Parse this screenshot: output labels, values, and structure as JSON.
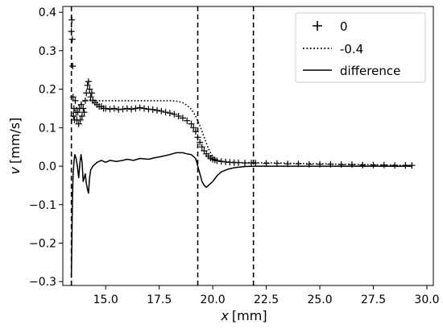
{
  "chart_data": {
    "type": "line",
    "xlabel": {
      "var": "x",
      "unit": "[mm]"
    },
    "ylabel": {
      "var": "v",
      "unit": "[mm/s]"
    },
    "xlim": [
      13.0,
      30.3
    ],
    "ylim": [
      -0.31,
      0.415
    ],
    "xticks": [
      15.0,
      17.5,
      20.0,
      22.5,
      25.0,
      27.5,
      30.0
    ],
    "xtick_labels": [
      "15.0",
      "17.5",
      "20.0",
      "22.5",
      "25.0",
      "27.5",
      "30.0"
    ],
    "yticks": [
      -0.3,
      -0.2,
      -0.1,
      0.0,
      0.1,
      0.2,
      0.3,
      0.4
    ],
    "ytick_labels": [
      "−0.3",
      "−0.2",
      "−0.1",
      "0.0",
      "0.1",
      "0.2",
      "0.3",
      "0.4"
    ],
    "grid": false,
    "legend_position": "top-right",
    "vlines": [
      13.4,
      19.3,
      21.9
    ],
    "series": [
      {
        "name": "0",
        "style": "markers-plus",
        "x": [
          13.4,
          13.42,
          13.44,
          13.46,
          13.48,
          13.5,
          13.52,
          13.55,
          13.58,
          13.62,
          13.66,
          13.7,
          13.74,
          13.78,
          13.82,
          13.86,
          13.9,
          13.95,
          14.0,
          14.05,
          14.1,
          14.15,
          14.2,
          14.25,
          14.3,
          14.35,
          14.4,
          14.5,
          14.6,
          14.7,
          14.8,
          14.9,
          15.0,
          15.2,
          15.4,
          15.6,
          15.8,
          16.0,
          16.2,
          16.4,
          16.6,
          16.8,
          17.0,
          17.2,
          17.4,
          17.6,
          17.8,
          18.0,
          18.2,
          18.4,
          18.6,
          18.8,
          19.0,
          19.1,
          19.2,
          19.3,
          19.4,
          19.5,
          19.6,
          19.7,
          19.8,
          19.9,
          20.0,
          20.1,
          20.2,
          20.4,
          20.6,
          20.8,
          21.0,
          21.2,
          21.5,
          21.8,
          22.0,
          22.5,
          23.0,
          23.5,
          24.0,
          24.5,
          25.0,
          25.5,
          26.0,
          26.5,
          27.0,
          27.5,
          28.0,
          28.5,
          29.0,
          29.3
        ],
        "y": [
          0.35,
          0.38,
          0.33,
          0.26,
          0.18,
          0.13,
          0.15,
          0.12,
          0.17,
          0.14,
          0.12,
          0.14,
          0.11,
          0.15,
          0.12,
          0.16,
          0.13,
          0.15,
          0.14,
          0.17,
          0.19,
          0.21,
          0.22,
          0.2,
          0.18,
          0.19,
          0.17,
          0.165,
          0.16,
          0.155,
          0.155,
          0.15,
          0.15,
          0.148,
          0.15,
          0.147,
          0.148,
          0.15,
          0.148,
          0.15,
          0.152,
          0.15,
          0.148,
          0.147,
          0.145,
          0.143,
          0.14,
          0.138,
          0.135,
          0.13,
          0.125,
          0.118,
          0.11,
          0.1,
          0.09,
          0.075,
          0.062,
          0.05,
          0.04,
          0.032,
          0.026,
          0.021,
          0.018,
          0.016,
          0.014,
          0.012,
          0.011,
          0.01,
          0.009,
          0.009,
          0.008,
          0.008,
          0.008,
          0.007,
          0.007,
          0.006,
          0.006,
          0.005,
          0.005,
          0.005,
          0.004,
          0.004,
          0.003,
          0.003,
          0.003,
          0.002,
          0.002,
          0.002
        ]
      },
      {
        "name": "-0.4",
        "style": "dotted",
        "x": [
          13.4,
          13.5,
          13.6,
          13.8,
          14.0,
          14.2,
          14.4,
          14.6,
          15.0,
          15.5,
          16.0,
          16.5,
          17.0,
          17.5,
          18.0,
          18.3,
          18.6,
          18.8,
          19.0,
          19.2,
          19.4,
          19.6,
          19.8,
          20.0,
          20.2,
          20.4,
          20.7,
          21.0,
          21.5,
          22.0,
          23.0,
          24.0,
          25.0,
          26.0,
          27.0,
          28.0,
          29.0,
          29.3
        ],
        "y": [
          0.12,
          0.14,
          0.15,
          0.16,
          0.17,
          0.172,
          0.172,
          0.17,
          0.17,
          0.17,
          0.17,
          0.17,
          0.17,
          0.17,
          0.17,
          0.169,
          0.165,
          0.158,
          0.148,
          0.13,
          0.105,
          0.075,
          0.045,
          0.025,
          0.017,
          0.013,
          0.011,
          0.01,
          0.009,
          0.009,
          0.008,
          0.007,
          0.006,
          0.005,
          0.004,
          0.003,
          0.002,
          0.002
        ]
      },
      {
        "name": "difference",
        "style": "solid",
        "x": [
          13.4,
          13.42,
          13.45,
          13.48,
          13.52,
          13.56,
          13.62,
          13.68,
          13.74,
          13.8,
          13.85,
          13.9,
          13.95,
          14.0,
          14.05,
          14.1,
          14.15,
          14.2,
          14.25,
          14.3,
          14.4,
          14.5,
          14.6,
          14.8,
          15.0,
          15.2,
          15.5,
          15.8,
          16.0,
          16.3,
          16.6,
          17.0,
          17.3,
          17.6,
          18.0,
          18.3,
          18.6,
          18.8,
          19.0,
          19.2,
          19.4,
          19.5,
          19.6,
          19.7,
          19.8,
          19.9,
          20.0,
          20.2,
          20.4,
          20.7,
          21.0,
          21.5,
          22.0,
          23.0,
          24.0,
          25.0,
          26.0,
          27.0,
          28.0,
          29.0,
          29.3
        ],
        "y": [
          -0.29,
          -0.2,
          -0.08,
          -0.02,
          0.01,
          0.03,
          0.02,
          0.0,
          -0.03,
          0.01,
          0.03,
          0.01,
          -0.04,
          -0.03,
          -0.02,
          -0.045,
          -0.06,
          -0.07,
          -0.03,
          -0.01,
          0.0,
          0.005,
          0.01,
          0.015,
          0.01,
          0.015,
          0.012,
          0.015,
          0.018,
          0.015,
          0.02,
          0.018,
          0.022,
          0.025,
          0.03,
          0.035,
          0.035,
          0.032,
          0.03,
          0.02,
          -0.02,
          -0.04,
          -0.05,
          -0.055,
          -0.05,
          -0.045,
          -0.04,
          -0.025,
          -0.015,
          -0.008,
          -0.004,
          -0.001,
          0.0,
          0.0,
          0.0,
          0.0,
          0.0,
          0.0,
          0.0,
          0.0,
          0.0
        ]
      }
    ]
  }
}
